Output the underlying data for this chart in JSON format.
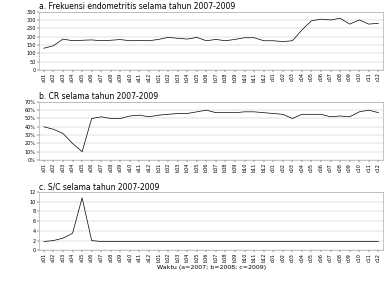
{
  "title_a": "a. Frekuensi endometritis selama tahun 2007-2009",
  "title_b": "b. CR selama tahun 2007-2009",
  "title_c": "c. S/C selama tahun 2007-2009",
  "xlabel": "Waktu (a=2007; b=2008; c=2009)",
  "ylim_a": [
    0,
    350
  ],
  "ylim_b": [
    0,
    70
  ],
  "ylim_c": [
    0,
    12
  ],
  "yticks_a": [
    0,
    50,
    100,
    150,
    200,
    250,
    300,
    350
  ],
  "yticks_b_vals": [
    0,
    10,
    20,
    30,
    40,
    50,
    60,
    70
  ],
  "yticks_b_labels": [
    "0%",
    "10%",
    "20%",
    "30%",
    "40%",
    "50%",
    "60%",
    "70%"
  ],
  "yticks_c": [
    0,
    2,
    4,
    6,
    8,
    10,
    12
  ],
  "n_points": 36,
  "data_a": [
    130,
    145,
    185,
    175,
    178,
    180,
    175,
    178,
    182,
    175,
    176,
    175,
    183,
    195,
    190,
    185,
    195,
    175,
    183,
    175,
    183,
    193,
    193,
    175,
    175,
    170,
    175,
    240,
    295,
    305,
    300,
    310,
    275,
    300,
    275,
    280
  ],
  "data_b": [
    40,
    37,
    32,
    20,
    10,
    50,
    52,
    50,
    50,
    53,
    54,
    52,
    54,
    55,
    56,
    56,
    58,
    60,
    57,
    57,
    57,
    58,
    58,
    57,
    56,
    55,
    50,
    55,
    55,
    55,
    52,
    53,
    52,
    58,
    60,
    57
  ],
  "data_c": [
    1.8,
    2.0,
    2.5,
    3.5,
    10.8,
    2.0,
    1.8,
    1.8,
    1.8,
    1.8,
    1.8,
    1.8,
    1.8,
    1.8,
    1.8,
    1.8,
    1.8,
    1.8,
    1.8,
    1.8,
    1.8,
    1.8,
    1.8,
    1.8,
    1.8,
    1.8,
    1.8,
    1.8,
    1.8,
    1.8,
    1.8,
    1.8,
    1.8,
    1.8,
    1.8,
    1.8
  ],
  "line_color": "#000000",
  "bg_color": "#ffffff",
  "grid_color": "#bbbbbb",
  "tick_label_fontsize": 3.5,
  "title_fontsize": 5.5,
  "xlabel_fontsize": 4.5,
  "line_width": 0.5
}
